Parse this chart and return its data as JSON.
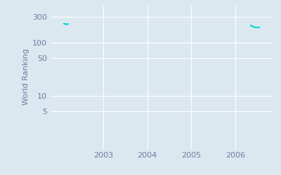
{
  "ylabel": "World Ranking",
  "background_color": "#dce8f0",
  "line_color": "#00d4d4",
  "grid_color": "#ffffff",
  "data_points_seg1": [
    {
      "date": 2002.1,
      "rank": 225
    },
    {
      "date": 2002.15,
      "rank": 220
    },
    {
      "date": 2002.2,
      "rank": 222
    }
  ],
  "data_points_seg2": [
    {
      "date": 2006.35,
      "rank": 210
    },
    {
      "date": 2006.42,
      "rank": 195
    },
    {
      "date": 2006.48,
      "rank": 190
    },
    {
      "date": 2006.55,
      "rank": 193
    }
  ],
  "xlim": [
    2001.8,
    2006.85
  ],
  "ylim_log_min": 1,
  "ylim_log_max": 500,
  "yticks": [
    5,
    10,
    50,
    100,
    300
  ],
  "xticks": [
    2003,
    2004,
    2005,
    2006
  ],
  "tick_color": "#6a7fa0",
  "ylabel_fontsize": 8,
  "tick_fontsize": 8
}
